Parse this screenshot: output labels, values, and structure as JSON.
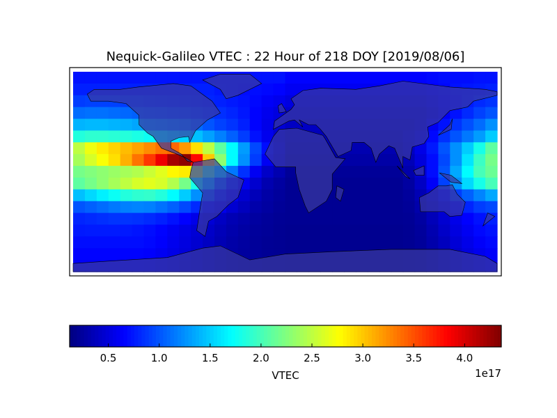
{
  "chart_data": {
    "type": "heatmap",
    "title": "Nequick-Galileo VTEC : 22 Hour of 218 DOY [2019/08/06]",
    "colormap": "jet",
    "colorbar": {
      "label": "VTEC",
      "offset_text": "1e17",
      "range": [
        0.12,
        4.36
      ],
      "ticks": [
        0.5,
        1.0,
        1.5,
        2.0,
        2.5,
        3.0,
        3.5,
        4.0
      ],
      "tick_labels": [
        "0.5",
        "1.0",
        "1.5",
        "2.0",
        "2.5",
        "3.0",
        "3.5",
        "4.0"
      ],
      "placement": "bottom"
    },
    "units_multiplier": 1e+17,
    "lon_range": [
      -180,
      180
    ],
    "lat_range": [
      -85,
      85
    ],
    "lon_centers": [
      -175,
      -165,
      -155,
      -145,
      -135,
      -125,
      -115,
      -105,
      -95,
      -85,
      -75,
      -65,
      -55,
      -45,
      -35,
      -25,
      -15,
      -5,
      5,
      15,
      25,
      35,
      45,
      55,
      65,
      75,
      85,
      95,
      105,
      115,
      125,
      135,
      145,
      155,
      165,
      175
    ],
    "lat_centers": [
      80,
      70,
      60,
      50,
      40,
      30,
      20,
      10,
      0,
      -10,
      -20,
      -30,
      -40,
      -50,
      -60,
      -70,
      -80
    ],
    "values": [
      [
        0.72,
        0.72,
        0.72,
        0.72,
        0.72,
        0.72,
        0.72,
        0.72,
        0.72,
        0.72,
        0.72,
        0.72,
        0.72,
        0.72,
        0.72,
        0.72,
        0.72,
        0.72,
        0.66,
        0.66,
        0.66,
        0.66,
        0.66,
        0.66,
        0.66,
        0.66,
        0.66,
        0.66,
        0.66,
        0.66,
        0.68,
        0.7,
        0.7,
        0.7,
        0.72,
        0.72
      ],
      [
        0.78,
        0.78,
        0.78,
        0.78,
        0.78,
        0.78,
        0.78,
        0.78,
        0.78,
        0.78,
        0.78,
        0.78,
        0.74,
        0.72,
        0.7,
        0.7,
        0.68,
        0.66,
        0.6,
        0.6,
        0.6,
        0.6,
        0.6,
        0.6,
        0.6,
        0.6,
        0.6,
        0.6,
        0.6,
        0.6,
        0.64,
        0.68,
        0.72,
        0.74,
        0.76,
        0.78
      ],
      [
        0.9,
        0.92,
        0.92,
        0.92,
        0.9,
        0.9,
        0.88,
        0.86,
        0.85,
        0.84,
        0.82,
        0.8,
        0.78,
        0.75,
        0.72,
        0.68,
        0.62,
        0.58,
        0.52,
        0.52,
        0.52,
        0.52,
        0.52,
        0.52,
        0.52,
        0.52,
        0.52,
        0.52,
        0.52,
        0.52,
        0.58,
        0.64,
        0.7,
        0.76,
        0.82,
        0.86
      ],
      [
        1.1,
        1.12,
        1.12,
        1.1,
        1.08,
        1.05,
        1.02,
        1.0,
        0.98,
        0.96,
        0.92,
        0.88,
        0.84,
        0.8,
        0.74,
        0.66,
        0.58,
        0.52,
        0.45,
        0.45,
        0.45,
        0.45,
        0.45,
        0.45,
        0.45,
        0.45,
        0.45,
        0.45,
        0.45,
        0.45,
        0.52,
        0.62,
        0.72,
        0.82,
        0.92,
        1.0
      ],
      [
        1.4,
        1.42,
        1.42,
        1.4,
        1.38,
        1.34,
        1.3,
        1.26,
        1.22,
        1.18,
        1.1,
        1.0,
        0.92,
        0.86,
        0.78,
        0.66,
        0.56,
        0.48,
        0.4,
        0.4,
        0.4,
        0.4,
        0.4,
        0.4,
        0.4,
        0.4,
        0.4,
        0.4,
        0.4,
        0.45,
        0.6,
        0.72,
        0.86,
        0.98,
        1.1,
        1.25
      ],
      [
        1.85,
        1.9,
        1.9,
        1.88,
        1.86,
        1.82,
        1.76,
        1.7,
        1.62,
        1.55,
        1.45,
        1.32,
        1.18,
        1.05,
        0.9,
        0.72,
        0.58,
        0.46,
        0.36,
        0.36,
        0.36,
        0.36,
        0.36,
        0.36,
        0.36,
        0.36,
        0.36,
        0.36,
        0.42,
        0.52,
        0.68,
        0.85,
        1.0,
        1.15,
        1.3,
        1.5
      ],
      [
        2.5,
        2.7,
        2.85,
        2.95,
        3.05,
        3.15,
        3.25,
        3.35,
        3.4,
        3.2,
        2.9,
        2.5,
        2.1,
        1.7,
        1.3,
        0.95,
        0.7,
        0.5,
        0.32,
        0.32,
        0.32,
        0.32,
        0.32,
        0.32,
        0.32,
        0.32,
        0.32,
        0.32,
        0.4,
        0.55,
        0.75,
        1.0,
        1.25,
        1.5,
        1.8,
        2.1
      ],
      [
        2.4,
        2.6,
        2.75,
        2.9,
        3.1,
        3.35,
        3.6,
        3.9,
        4.2,
        4.3,
        3.8,
        3.0,
        2.3,
        1.7,
        1.25,
        0.9,
        0.6,
        0.45,
        0.28,
        0.28,
        0.28,
        0.28,
        0.28,
        0.28,
        0.28,
        0.28,
        0.28,
        0.28,
        0.35,
        0.5,
        0.7,
        0.95,
        1.25,
        1.6,
        1.95,
        2.2
      ],
      [
        2.2,
        2.25,
        2.3,
        2.35,
        2.4,
        2.45,
        2.55,
        2.65,
        2.8,
        2.85,
        2.5,
        2.0,
        1.55,
        1.15,
        0.85,
        0.6,
        0.42,
        0.32,
        0.22,
        0.22,
        0.22,
        0.22,
        0.22,
        0.22,
        0.22,
        0.22,
        0.22,
        0.22,
        0.3,
        0.45,
        0.7,
        1.0,
        1.35,
        1.7,
        2.0,
        2.15
      ],
      [
        2.1,
        2.2,
        2.3,
        2.4,
        2.5,
        2.6,
        2.65,
        2.6,
        2.45,
        2.2,
        1.8,
        1.4,
        1.05,
        0.8,
        0.6,
        0.45,
        0.32,
        0.26,
        0.2,
        0.2,
        0.2,
        0.2,
        0.2,
        0.2,
        0.2,
        0.2,
        0.2,
        0.2,
        0.26,
        0.4,
        0.62,
        0.92,
        1.25,
        1.55,
        1.8,
        2.0
      ],
      [
        1.45,
        1.55,
        1.65,
        1.75,
        1.85,
        1.9,
        1.92,
        1.85,
        1.7,
        1.5,
        1.25,
        1.0,
        0.78,
        0.6,
        0.46,
        0.36,
        0.28,
        0.24,
        0.2,
        0.2,
        0.2,
        0.2,
        0.2,
        0.2,
        0.2,
        0.2,
        0.2,
        0.2,
        0.24,
        0.34,
        0.5,
        0.7,
        0.9,
        1.05,
        1.2,
        1.35
      ],
      [
        1.0,
        1.05,
        1.1,
        1.15,
        1.18,
        1.2,
        1.18,
        1.12,
        1.05,
        0.95,
        0.82,
        0.7,
        0.58,
        0.46,
        0.38,
        0.3,
        0.26,
        0.22,
        0.2,
        0.2,
        0.2,
        0.2,
        0.2,
        0.2,
        0.2,
        0.2,
        0.2,
        0.2,
        0.22,
        0.3,
        0.42,
        0.55,
        0.68,
        0.8,
        0.9,
        0.95
      ],
      [
        0.8,
        0.82,
        0.84,
        0.86,
        0.86,
        0.85,
        0.82,
        0.78,
        0.72,
        0.65,
        0.56,
        0.48,
        0.4,
        0.34,
        0.3,
        0.26,
        0.23,
        0.21,
        0.2,
        0.2,
        0.2,
        0.2,
        0.2,
        0.2,
        0.2,
        0.2,
        0.2,
        0.2,
        0.21,
        0.26,
        0.36,
        0.46,
        0.56,
        0.65,
        0.72,
        0.78
      ],
      [
        0.75,
        0.76,
        0.76,
        0.76,
        0.75,
        0.73,
        0.7,
        0.66,
        0.6,
        0.54,
        0.48,
        0.42,
        0.36,
        0.31,
        0.27,
        0.24,
        0.22,
        0.2,
        0.19,
        0.19,
        0.19,
        0.19,
        0.19,
        0.19,
        0.19,
        0.19,
        0.19,
        0.19,
        0.2,
        0.24,
        0.32,
        0.42,
        0.52,
        0.6,
        0.68,
        0.72
      ],
      [
        0.7,
        0.7,
        0.7,
        0.7,
        0.7,
        0.7,
        0.68,
        0.64,
        0.58,
        0.52,
        0.46,
        0.4,
        0.34,
        0.29,
        0.26,
        0.23,
        0.21,
        0.2,
        0.19,
        0.19,
        0.19,
        0.19,
        0.19,
        0.19,
        0.19,
        0.19,
        0.19,
        0.19,
        0.2,
        0.23,
        0.3,
        0.38,
        0.48,
        0.56,
        0.63,
        0.68
      ],
      [
        0.66,
        0.66,
        0.66,
        0.66,
        0.66,
        0.66,
        0.64,
        0.6,
        0.55,
        0.5,
        0.44,
        0.38,
        0.33,
        0.28,
        0.25,
        0.23,
        0.21,
        0.2,
        0.19,
        0.19,
        0.19,
        0.19,
        0.19,
        0.19,
        0.19,
        0.19,
        0.19,
        0.19,
        0.2,
        0.22,
        0.28,
        0.36,
        0.44,
        0.52,
        0.58,
        0.63
      ],
      [
        0.62,
        0.62,
        0.62,
        0.62,
        0.62,
        0.62,
        0.6,
        0.57,
        0.52,
        0.47,
        0.42,
        0.37,
        0.32,
        0.28,
        0.25,
        0.23,
        0.21,
        0.2,
        0.19,
        0.19,
        0.19,
        0.19,
        0.19,
        0.19,
        0.19,
        0.19,
        0.19,
        0.19,
        0.2,
        0.22,
        0.27,
        0.34,
        0.41,
        0.48,
        0.54,
        0.59
      ]
    ],
    "land_color": "#3a3aa0",
    "coastline_color": "#000000"
  }
}
